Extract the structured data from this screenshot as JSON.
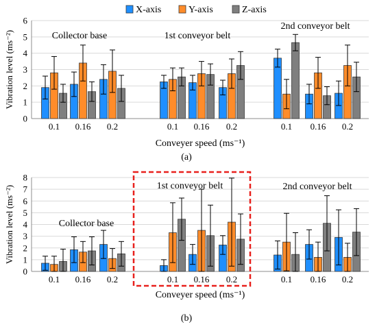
{
  "colors": {
    "X-axis": "#1f8fff",
    "Y-axis": "#ff8c2a",
    "Z-axis": "#7f7f7f",
    "highlight": "#e8201c"
  },
  "chart_data": [
    {
      "id": "a",
      "type": "bar",
      "panel_label": "(a)",
      "xlabel": "Conveyer speed (ms⁻¹)",
      "ylabel": "Vibration level (ms⁻²)",
      "ylim": [
        0,
        6
      ],
      "yticks": [
        "0",
        "1",
        "2",
        "3",
        "4",
        "5",
        "6"
      ],
      "grid": true,
      "legend": {
        "position": "top-right",
        "entries": [
          "X-axis",
          "Y-axis",
          "Z-axis"
        ]
      },
      "groups": [
        {
          "name": "Collector base",
          "categories": [
            "0.1",
            "0.16",
            "0.2"
          ],
          "series": [
            {
              "name": "X-axis",
              "values": [
                1.9,
                2.1,
                2.4
              ],
              "errors": [
                0.7,
                0.75,
                0.9
              ]
            },
            {
              "name": "Y-axis",
              "values": [
                2.8,
                3.4,
                2.9
              ],
              "errors": [
                1.0,
                1.1,
                1.3
              ]
            },
            {
              "name": "Z-axis",
              "values": [
                1.55,
                1.65,
                1.85
              ],
              "errors": [
                0.55,
                0.6,
                0.8
              ]
            }
          ]
        },
        {
          "name": "1st conveyor belt",
          "categories": [
            "0.1",
            "0.16",
            "0.2"
          ],
          "series": [
            {
              "name": "X-axis",
              "values": [
                2.25,
                2.2,
                1.9
              ],
              "errors": [
                0.4,
                0.45,
                0.45
              ]
            },
            {
              "name": "Y-axis",
              "values": [
                2.4,
                2.75,
                2.75
              ],
              "errors": [
                0.7,
                0.75,
                0.9
              ]
            },
            {
              "name": "Z-axis",
              "values": [
                2.55,
                2.7,
                3.25
              ],
              "errors": [
                0.55,
                0.65,
                0.85
              ]
            }
          ]
        },
        {
          "name": "2nd conveyor belt",
          "categories": [
            "0.1",
            "0.16",
            "0.2"
          ],
          "series": [
            {
              "name": "X-axis",
              "values": [
                3.7,
                1.5,
                1.55
              ],
              "errors": [
                0.55,
                0.6,
                0.75
              ]
            },
            {
              "name": "Y-axis",
              "values": [
                1.5,
                2.8,
                3.25
              ],
              "errors": [
                0.9,
                0.95,
                1.25
              ]
            },
            {
              "name": "Z-axis",
              "values": [
                4.65,
                1.4,
                2.55
              ],
              "errors": [
                0.5,
                0.55,
                0.9
              ]
            }
          ]
        }
      ]
    },
    {
      "id": "b",
      "type": "bar",
      "panel_label": "(b)",
      "xlabel": "Conveyer speed (ms⁻¹)",
      "ylabel": "Vibration level (ms⁻²)",
      "ylim": [
        0,
        8
      ],
      "yticks": [
        "0",
        "1",
        "2",
        "3",
        "4",
        "5",
        "6",
        "7",
        "8"
      ],
      "grid": true,
      "highlight_group": "1st conveyor belt",
      "groups": [
        {
          "name": "Collector base",
          "categories": [
            "0.1",
            "0.16",
            "0.2"
          ],
          "series": [
            {
              "name": "X-axis",
              "values": [
                0.7,
                1.85,
                2.3
              ],
              "errors": [
                0.6,
                1.1,
                1.2
              ]
            },
            {
              "name": "Y-axis",
              "values": [
                0.6,
                1.65,
                1.1
              ],
              "errors": [
                0.7,
                0.9,
                0.85
              ]
            },
            {
              "name": "Z-axis",
              "values": [
                0.85,
                1.75,
                1.5
              ],
              "errors": [
                1.05,
                1.2,
                1.05
              ]
            }
          ]
        },
        {
          "name": "1st conveyor belt",
          "categories": [
            "0.1",
            "0.16",
            "0.2"
          ],
          "series": [
            {
              "name": "X-axis",
              "values": [
                0.5,
                1.45,
                2.25
              ],
              "errors": [
                0.5,
                0.85,
                0.8
              ]
            },
            {
              "name": "Y-axis",
              "values": [
                3.3,
                3.5,
                4.2
              ],
              "errors": [
                2.55,
                3.5,
                3.75
              ]
            },
            {
              "name": "Z-axis",
              "values": [
                4.45,
                3.05,
                2.75
              ],
              "errors": [
                1.8,
                2.6,
                2.15
              ]
            }
          ]
        },
        {
          "name": "2nd conveyor belt",
          "categories": [
            "0.1",
            "0.16",
            "0.2"
          ],
          "series": [
            {
              "name": "X-axis",
              "values": [
                1.4,
                2.3,
                2.9
              ],
              "errors": [
                1.2,
                1.25,
                2.35
              ]
            },
            {
              "name": "Y-axis",
              "values": [
                2.5,
                1.2,
                1.2
              ],
              "errors": [
                2.45,
                1.3,
                1.2
              ]
            },
            {
              "name": "Z-axis",
              "values": [
                1.45,
                4.1,
                3.35
              ],
              "errors": [
                1.85,
                2.35,
                2.0
              ]
            }
          ]
        }
      ]
    }
  ]
}
